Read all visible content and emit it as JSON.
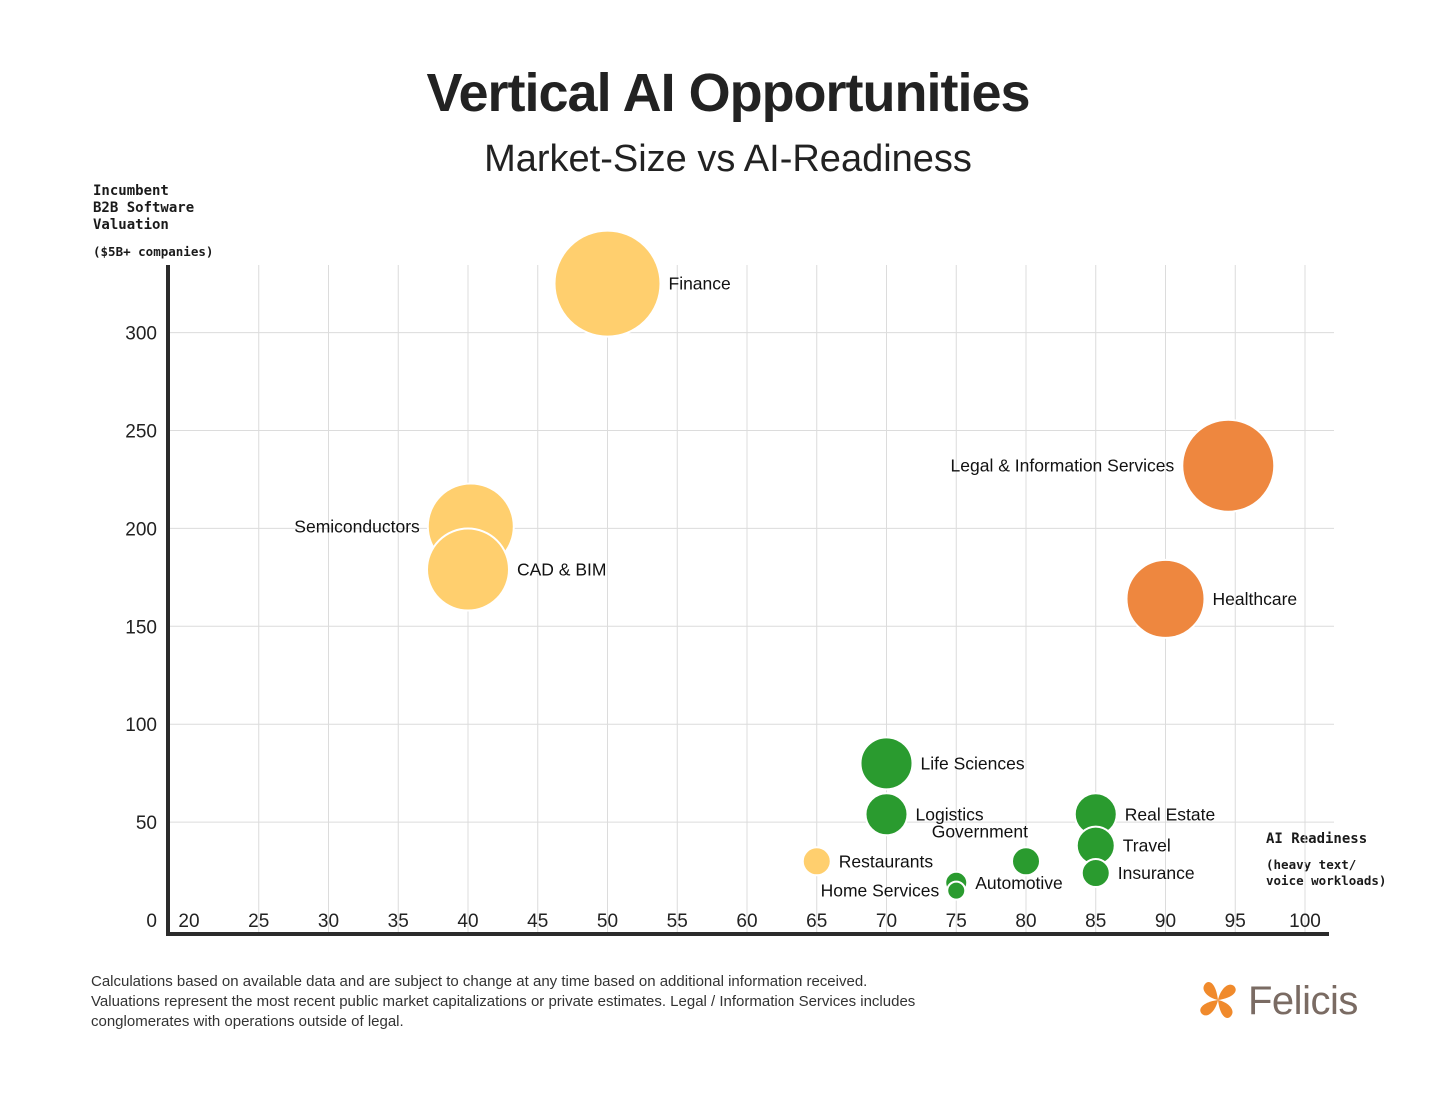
{
  "chart_data": {
    "type": "scatter",
    "subtype": "bubble",
    "title": "Vertical AI Opportunities",
    "subtitle": "Market-Size vs AI-Readiness",
    "ylabel": "Incumbent B2B Software Valuation",
    "ylabel_lines": [
      "Incumbent",
      "B2B Software",
      "Valuation"
    ],
    "ylabel_note": "($5B+ companies)",
    "xlabel": "AI Readiness",
    "xlabel_note_lines": [
      "(heavy text/",
      "voice workloads)"
    ],
    "xlim": [
      20,
      100
    ],
    "ylim": [
      0,
      330
    ],
    "xticks": [
      20,
      25,
      30,
      35,
      40,
      45,
      50,
      55,
      60,
      65,
      70,
      75,
      80,
      85,
      90,
      95,
      100
    ],
    "yticks": [
      0,
      50,
      100,
      150,
      200,
      250,
      300
    ],
    "grid": true,
    "colors": {
      "yellow": "#FFCF6E",
      "orange": "#EE873F",
      "green": "#2A9B2F"
    },
    "points": [
      {
        "label": "Finance",
        "x": 50,
        "y": 325,
        "size": 53,
        "color": "#FFCF6E",
        "label_side": "right"
      },
      {
        "label": "Legal & Information Services",
        "x": 94.5,
        "y": 232,
        "size": 46,
        "color": "#EE873F",
        "label_side": "left"
      },
      {
        "label": "Semiconductors",
        "x": 40.2,
        "y": 201,
        "size": 43,
        "color": "#FFCF6E",
        "label_side": "left"
      },
      {
        "label": "CAD & BIM",
        "x": 40,
        "y": 179,
        "size": 41,
        "color": "#FFCF6E",
        "label_side": "right"
      },
      {
        "label": "Healthcare",
        "x": 90,
        "y": 164,
        "size": 39,
        "color": "#EE873F",
        "label_side": "right"
      },
      {
        "label": "Life Sciences",
        "x": 70,
        "y": 80,
        "size": 26,
        "color": "#2A9B2F",
        "label_side": "right"
      },
      {
        "label": "Logistics",
        "x": 70,
        "y": 54,
        "size": 21,
        "color": "#2A9B2F",
        "label_side": "right"
      },
      {
        "label": "Real Estate",
        "x": 85,
        "y": 54,
        "size": 21,
        "color": "#2A9B2F",
        "label_side": "right"
      },
      {
        "label": "Travel",
        "x": 85,
        "y": 38,
        "size": 19,
        "color": "#2A9B2F",
        "label_side": "right"
      },
      {
        "label": "Government",
        "x": 80,
        "y": 30,
        "size": 14,
        "color": "#2A9B2F",
        "label_side": "top-left"
      },
      {
        "label": "Restaurants",
        "x": 65,
        "y": 30,
        "size": 14,
        "color": "#FFCF6E",
        "label_side": "right"
      },
      {
        "label": "Insurance",
        "x": 85,
        "y": 24,
        "size": 14,
        "color": "#2A9B2F",
        "label_side": "right"
      },
      {
        "label": "Automotive",
        "x": 75,
        "y": 19,
        "size": 11,
        "color": "#2A9B2F",
        "label_side": "right"
      },
      {
        "label": "Home Services",
        "x": 75,
        "y": 15,
        "size": 9,
        "color": "#2A9B2F",
        "label_side": "left"
      }
    ]
  },
  "footnote": "Calculations based on available data and are subject to change at any time based on additional information received. Valuations represent the most recent public market capitalizations or private estimates. Legal / Information Services includes conglomerates with operations outside of legal.",
  "brand": {
    "name": "Felicis",
    "color": "#F08A2C",
    "text_color": "#7a6b63"
  }
}
